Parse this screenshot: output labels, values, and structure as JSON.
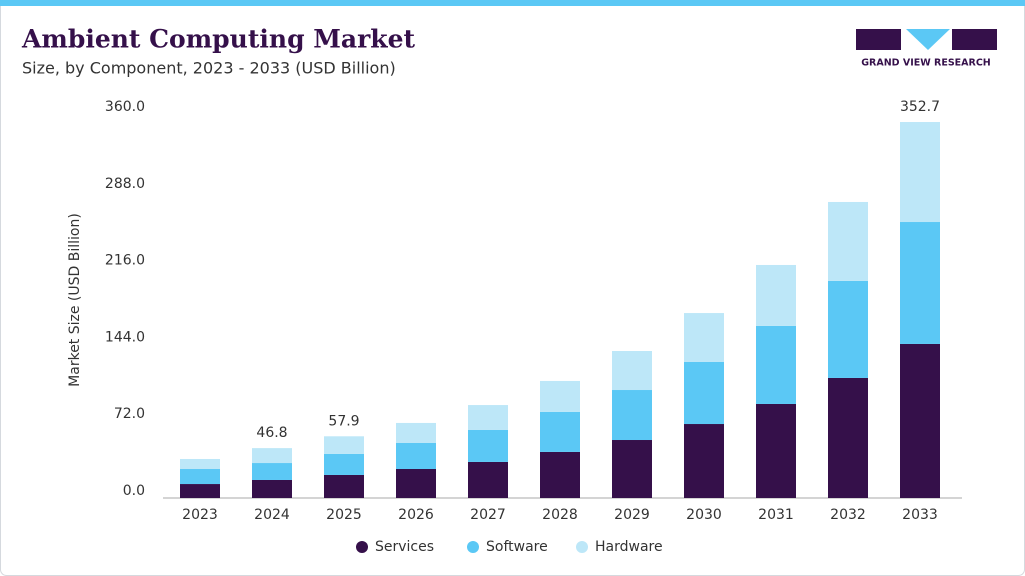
{
  "chart_data": {
    "type": "stacked_bar",
    "title": "Ambient Computing Market",
    "subtitle": "Size, by Component, 2023 - 2033 (USD Billion)",
    "y_label": "Market Size (USD Billion)",
    "brand": "GRAND VIEW RESEARCH",
    "categories": [
      "2023",
      "2024",
      "2025",
      "2026",
      "2027",
      "2028",
      "2029",
      "2030",
      "2031",
      "2032",
      "2033"
    ],
    "series": [
      {
        "name": "Services",
        "color": "#35104a",
        "values": [
          13.1,
          16.9,
          21.6,
          27.2,
          33.8,
          43.2,
          54.4,
          69.4,
          88.2,
          112.6,
          144.5
        ]
      },
      {
        "name": "Software",
        "color": "#5bc8f5",
        "values": [
          14.1,
          15.9,
          19.7,
          24.4,
          30.0,
          37.5,
          46.9,
          58.2,
          73.2,
          91.0,
          114.4
        ]
      },
      {
        "name": "Hardware",
        "color": "#bde7f8",
        "values": [
          9.4,
          14.0,
          16.6,
          18.8,
          23.4,
          29.1,
          36.6,
          45.9,
          57.2,
          74.1,
          93.8
        ]
      }
    ],
    "total_labels": {
      "categories": [
        "2024",
        "2025",
        "2033"
      ],
      "values": [
        46.8,
        57.9,
        352.7
      ]
    },
    "ylim": [
      0,
      370
    ],
    "yticks": [
      {
        "value": 0,
        "label": "0.0"
      },
      {
        "value": 72,
        "label": "72.0"
      },
      {
        "value": 144,
        "label": "144.0"
      },
      {
        "value": 216,
        "label": "216.0"
      },
      {
        "value": 288,
        "label": "288.0"
      },
      {
        "value": 360,
        "label": "360.0"
      }
    ],
    "grid": false,
    "legend": "bottom"
  }
}
